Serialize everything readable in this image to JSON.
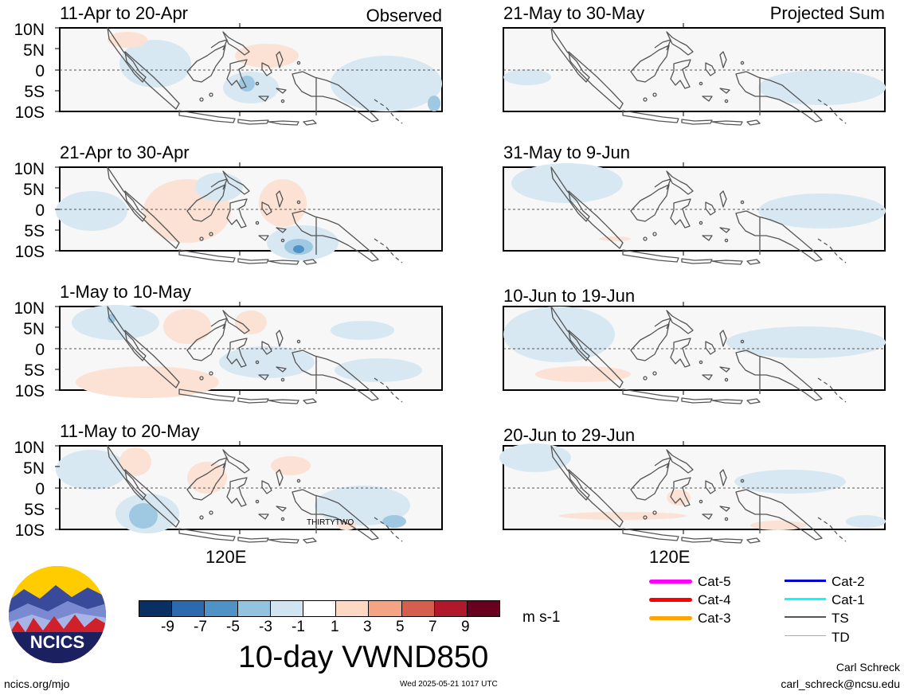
{
  "header": {
    "observed_label": "Observed",
    "projected_label": "Projected Sum"
  },
  "panels": {
    "left": [
      "11-Apr to 20-Apr",
      "21-Apr to 30-Apr",
      "1-May to 10-May",
      "11-May to 20-May"
    ],
    "right": [
      "21-May to 30-May",
      "31-May to 9-Jun",
      "10-Jun to 19-Jun",
      "20-Jun to 29-Jun"
    ]
  },
  "lat_ticks": [
    "10N",
    "5N",
    "0",
    "5S",
    "10S"
  ],
  "lon_label": "120E",
  "storm_label": "THIRTYTWO",
  "colorbar": {
    "colors": [
      "#083063",
      "#2c6ab0",
      "#4e92c6",
      "#92c4df",
      "#d0e5f1",
      "#ffffff",
      "#fdd9c4",
      "#f4a383",
      "#d55e4d",
      "#b2182b",
      "#6a001f"
    ],
    "ticks": [
      "-9",
      "-7",
      "-5",
      "-3",
      "-1",
      "1",
      "3",
      "5",
      "7",
      "9"
    ],
    "units": "m s-1"
  },
  "legend": {
    "left": [
      {
        "label": "Cat-5",
        "color": "#ff00ff"
      },
      {
        "label": "Cat-4",
        "color": "#ff0000"
      },
      {
        "label": "Cat-3",
        "color": "#ffa500"
      }
    ],
    "right": [
      {
        "label": "Cat-2",
        "color": "#0000cc"
      },
      {
        "label": "Cat-1",
        "color": "#00ffff"
      },
      {
        "label": "TS",
        "color": "#555555"
      },
      {
        "label": "TD",
        "color": "#aaaaaa"
      }
    ]
  },
  "main_title": "10-day VWND850",
  "logo_text": "NCICS",
  "footer": {
    "url": "ncics.org/mjo",
    "timestamp": "Wed 2025-05-21 1017 UTC",
    "author": "Carl Schreck",
    "email": "carl_schreck@ncsu.edu"
  }
}
